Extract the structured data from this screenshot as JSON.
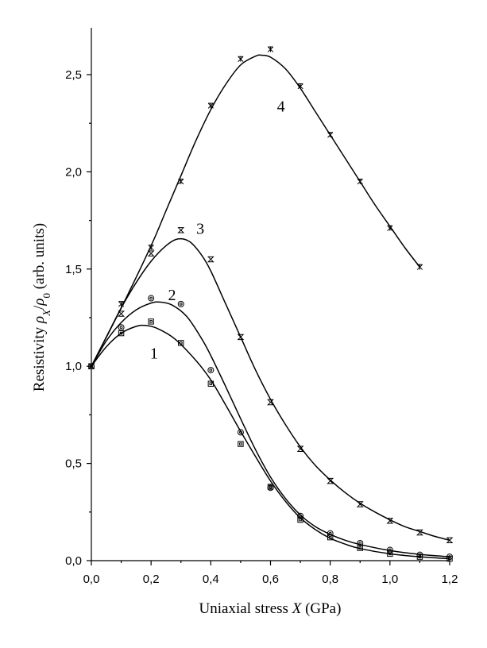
{
  "chart_data": {
    "type": "line",
    "xlabel": {
      "prefix": "Uniaxial stress ",
      "symbol": "X",
      "suffix": "  (GPa)"
    },
    "ylabel": {
      "prefix": "Resistivity ",
      "symbol": "ρ",
      "sub1": "X",
      "slash": "/",
      "sub2": "0",
      "suffix": " (arb. units)"
    },
    "xlim": [
      0,
      1.2
    ],
    "ylim": [
      0,
      2.75
    ],
    "x_ticks": [
      0,
      0.2,
      0.4,
      0.6,
      0.8,
      1.0,
      1.2
    ],
    "x_tick_labels": [
      "0,0",
      "0,2",
      "0,4",
      "0,6",
      "0,8",
      "1,0",
      "1,2"
    ],
    "y_ticks": [
      0,
      0.5,
      1.0,
      1.5,
      2.0,
      2.5
    ],
    "y_tick_labels": [
      "0,0",
      "0,5",
      "1,0",
      "1,5",
      "2,0",
      "2,5"
    ],
    "grid": false,
    "legend": "inline labels",
    "series": [
      {
        "label": "1",
        "label_at": [
          0.21,
          1.04
        ],
        "marker": "square",
        "points": [
          [
            0.0,
            1.0
          ],
          [
            0.1,
            1.17
          ],
          [
            0.2,
            1.23
          ],
          [
            0.3,
            1.12
          ],
          [
            0.4,
            0.91
          ],
          [
            0.5,
            0.6
          ],
          [
            0.6,
            0.38
          ],
          [
            0.7,
            0.21
          ],
          [
            0.8,
            0.12
          ],
          [
            0.9,
            0.065
          ],
          [
            1.0,
            0.035
          ],
          [
            1.1,
            0.02
          ],
          [
            1.2,
            0.01
          ]
        ],
        "curve": [
          [
            0.0,
            1.0
          ],
          [
            0.05,
            1.1
          ],
          [
            0.1,
            1.17
          ],
          [
            0.15,
            1.205
          ],
          [
            0.18,
            1.21
          ],
          [
            0.22,
            1.195
          ],
          [
            0.28,
            1.14
          ],
          [
            0.35,
            1.03
          ],
          [
            0.4,
            0.93
          ],
          [
            0.45,
            0.8
          ],
          [
            0.5,
            0.665
          ],
          [
            0.55,
            0.535
          ],
          [
            0.6,
            0.41
          ],
          [
            0.65,
            0.305
          ],
          [
            0.7,
            0.22
          ],
          [
            0.75,
            0.16
          ],
          [
            0.8,
            0.115
          ],
          [
            0.85,
            0.085
          ],
          [
            0.9,
            0.062
          ],
          [
            1.0,
            0.035
          ],
          [
            1.1,
            0.02
          ],
          [
            1.2,
            0.01
          ]
        ]
      },
      {
        "label": "2",
        "label_at": [
          0.27,
          1.34
        ],
        "marker": "circle",
        "points": [
          [
            0.0,
            1.0
          ],
          [
            0.1,
            1.2
          ],
          [
            0.2,
            1.35
          ],
          [
            0.3,
            1.32
          ],
          [
            0.4,
            0.98
          ],
          [
            0.5,
            0.66
          ],
          [
            0.6,
            0.375
          ],
          [
            0.7,
            0.23
          ],
          [
            0.8,
            0.14
          ],
          [
            0.9,
            0.09
          ],
          [
            1.0,
            0.055
          ],
          [
            1.1,
            0.03
          ],
          [
            1.2,
            0.02
          ]
        ],
        "curve": [
          [
            0.0,
            1.0
          ],
          [
            0.05,
            1.13
          ],
          [
            0.1,
            1.225
          ],
          [
            0.15,
            1.29
          ],
          [
            0.2,
            1.325
          ],
          [
            0.23,
            1.33
          ],
          [
            0.27,
            1.315
          ],
          [
            0.32,
            1.255
          ],
          [
            0.37,
            1.14
          ],
          [
            0.4,
            1.055
          ],
          [
            0.45,
            0.895
          ],
          [
            0.5,
            0.73
          ],
          [
            0.55,
            0.57
          ],
          [
            0.6,
            0.43
          ],
          [
            0.65,
            0.32
          ],
          [
            0.7,
            0.235
          ],
          [
            0.75,
            0.175
          ],
          [
            0.8,
            0.135
          ],
          [
            0.85,
            0.105
          ],
          [
            0.9,
            0.083
          ],
          [
            1.0,
            0.052
          ],
          [
            1.1,
            0.032
          ],
          [
            1.2,
            0.02
          ]
        ]
      },
      {
        "label": "3",
        "label_at": [
          0.365,
          1.68
        ],
        "marker": "hourglass",
        "points": [
          [
            0.0,
            1.0
          ],
          [
            0.1,
            1.27
          ],
          [
            0.2,
            1.58
          ],
          [
            0.3,
            1.7
          ],
          [
            0.4,
            1.55
          ],
          [
            0.5,
            1.15
          ],
          [
            0.6,
            0.815
          ],
          [
            0.7,
            0.575
          ],
          [
            0.8,
            0.41
          ],
          [
            0.9,
            0.29
          ],
          [
            1.0,
            0.205
          ],
          [
            1.1,
            0.145
          ],
          [
            1.2,
            0.105
          ]
        ],
        "curve": [
          [
            0.0,
            1.0
          ],
          [
            0.05,
            1.15
          ],
          [
            0.1,
            1.3
          ],
          [
            0.15,
            1.43
          ],
          [
            0.2,
            1.54
          ],
          [
            0.25,
            1.62
          ],
          [
            0.29,
            1.655
          ],
          [
            0.33,
            1.64
          ],
          [
            0.37,
            1.57
          ],
          [
            0.4,
            1.49
          ],
          [
            0.45,
            1.32
          ],
          [
            0.5,
            1.15
          ],
          [
            0.55,
            0.98
          ],
          [
            0.6,
            0.83
          ],
          [
            0.65,
            0.7
          ],
          [
            0.7,
            0.585
          ],
          [
            0.75,
            0.49
          ],
          [
            0.8,
            0.415
          ],
          [
            0.85,
            0.35
          ],
          [
            0.9,
            0.295
          ],
          [
            0.95,
            0.25
          ],
          [
            1.0,
            0.21
          ],
          [
            1.05,
            0.175
          ],
          [
            1.1,
            0.15
          ],
          [
            1.15,
            0.125
          ],
          [
            1.2,
            0.105
          ]
        ]
      },
      {
        "label": "4",
        "label_at": [
          0.635,
          2.31
        ],
        "marker": "star",
        "points": [
          [
            0.0,
            1.0
          ],
          [
            0.1,
            1.32
          ],
          [
            0.2,
            1.61
          ],
          [
            0.3,
            1.95
          ],
          [
            0.4,
            2.34
          ],
          [
            0.5,
            2.58
          ],
          [
            0.6,
            2.63
          ],
          [
            0.7,
            2.44
          ],
          [
            0.8,
            2.19
          ],
          [
            0.9,
            1.95
          ],
          [
            1.0,
            1.71
          ],
          [
            1.1,
            1.51
          ]
        ],
        "curve": [
          [
            0.0,
            1.0
          ],
          [
            0.1,
            1.3
          ],
          [
            0.2,
            1.62
          ],
          [
            0.25,
            1.8
          ],
          [
            0.3,
            1.98
          ],
          [
            0.35,
            2.16
          ],
          [
            0.4,
            2.32
          ],
          [
            0.45,
            2.45
          ],
          [
            0.5,
            2.55
          ],
          [
            0.55,
            2.595
          ],
          [
            0.57,
            2.6
          ],
          [
            0.6,
            2.59
          ],
          [
            0.65,
            2.53
          ],
          [
            0.7,
            2.43
          ],
          [
            0.75,
            2.31
          ],
          [
            0.8,
            2.19
          ],
          [
            0.85,
            2.07
          ],
          [
            0.9,
            1.95
          ],
          [
            0.95,
            1.83
          ],
          [
            1.0,
            1.72
          ],
          [
            1.05,
            1.61
          ],
          [
            1.1,
            1.51
          ]
        ]
      }
    ]
  }
}
